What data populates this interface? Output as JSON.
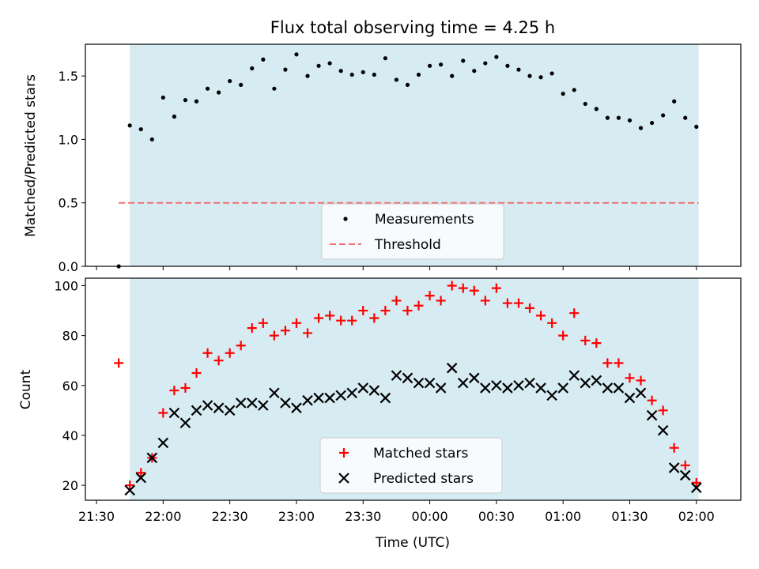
{
  "figure": {
    "title": "Flux total observing time = 4.25 h",
    "xlabel": "Time (UTC)"
  },
  "time_ticks": [
    "21:30",
    "22:00",
    "22:30",
    "23:00",
    "23:30",
    "00:00",
    "00:30",
    "01:00",
    "01:30",
    "02:00"
  ],
  "chart_data": [
    {
      "type": "scatter",
      "ylabel": "Matched/Predicted stars",
      "xlim": [
        -5,
        290
      ],
      "ylim": [
        0,
        1.75
      ],
      "yticks": [
        "0.0",
        "0.5",
        "1.0",
        "1.5"
      ],
      "shaded_span": [
        15,
        271
      ],
      "threshold": {
        "value": 0.5,
        "x_range": [
          10,
          271
        ],
        "color": "#f07070"
      },
      "legend": {
        "placement": "lower center",
        "entries": [
          "Measurements",
          "Threshold"
        ]
      },
      "series": [
        {
          "name": "Measurements",
          "color": "#000000",
          "x": [
            10,
            15,
            20,
            25,
            30,
            35,
            40,
            45,
            50,
            55,
            60,
            65,
            70,
            75,
            80,
            85,
            90,
            95,
            100,
            105,
            110,
            115,
            120,
            125,
            130,
            135,
            140,
            145,
            150,
            155,
            160,
            165,
            170,
            175,
            180,
            185,
            190,
            195,
            200,
            205,
            210,
            215,
            220,
            225,
            230,
            235,
            240,
            245,
            250,
            255,
            260,
            265,
            270
          ],
          "y": [
            0.0,
            1.11,
            1.08,
            1.0,
            1.33,
            1.18,
            1.31,
            1.3,
            1.4,
            1.37,
            1.46,
            1.43,
            1.56,
            1.63,
            1.4,
            1.55,
            1.67,
            1.5,
            1.58,
            1.6,
            1.54,
            1.51,
            1.53,
            1.51,
            1.64,
            1.47,
            1.43,
            1.51,
            1.58,
            1.59,
            1.5,
            1.62,
            1.54,
            1.6,
            1.65,
            1.58,
            1.55,
            1.5,
            1.49,
            1.52,
            1.36,
            1.39,
            1.28,
            1.24,
            1.17,
            1.17,
            1.15,
            1.09,
            1.13,
            1.19,
            1.3,
            1.17,
            1.1
          ]
        }
      ]
    },
    {
      "type": "scatter",
      "ylabel": "Count",
      "xlim": [
        -5,
        290
      ],
      "ylim": [
        14,
        103
      ],
      "yticks": [
        "20",
        "40",
        "60",
        "80",
        "100"
      ],
      "shaded_span": [
        15,
        271
      ],
      "legend": {
        "placement": "lower center",
        "entries": [
          "Matched stars",
          "Predicted stars"
        ]
      },
      "series": [
        {
          "name": "Matched stars",
          "color": "#ff0000",
          "marker": "+",
          "x": [
            10,
            15,
            20,
            25,
            30,
            35,
            40,
            45,
            50,
            55,
            60,
            65,
            70,
            75,
            80,
            85,
            90,
            95,
            100,
            105,
            110,
            115,
            120,
            125,
            130,
            135,
            140,
            145,
            150,
            155,
            160,
            165,
            170,
            175,
            180,
            185,
            190,
            195,
            200,
            205,
            210,
            215,
            220,
            225,
            230,
            235,
            240,
            245,
            250,
            255,
            260,
            265,
            270
          ],
          "y": [
            69,
            20,
            25,
            31,
            49,
            58,
            59,
            65,
            73,
            70,
            73,
            76,
            83,
            85,
            80,
            82,
            85,
            81,
            87,
            88,
            86,
            86,
            90,
            87,
            90,
            94,
            90,
            92,
            96,
            94,
            100,
            99,
            98,
            94,
            99,
            93,
            93,
            91,
            88,
            85,
            80,
            89,
            78,
            77,
            69,
            69,
            63,
            62,
            54,
            50,
            35,
            28,
            21
          ]
        },
        {
          "name": "Predicted stars",
          "color": "#000000",
          "marker": "x",
          "x": [
            15,
            20,
            25,
            30,
            35,
            40,
            45,
            50,
            55,
            60,
            65,
            70,
            75,
            80,
            85,
            90,
            95,
            100,
            105,
            110,
            115,
            120,
            125,
            130,
            135,
            140,
            145,
            150,
            155,
            160,
            165,
            170,
            175,
            180,
            185,
            190,
            195,
            200,
            205,
            210,
            215,
            220,
            225,
            230,
            235,
            240,
            245,
            250,
            255,
            260,
            265,
            270
          ],
          "y": [
            18,
            23,
            31,
            37,
            49,
            45,
            50,
            52,
            51,
            50,
            53,
            53,
            52,
            57,
            53,
            51,
            54,
            55,
            55,
            56,
            57,
            59,
            58,
            55,
            64,
            63,
            61,
            61,
            59,
            67,
            61,
            63,
            59,
            60,
            59,
            60,
            61,
            59,
            56,
            59,
            64,
            61,
            62,
            59,
            59,
            55,
            57,
            48,
            42,
            27,
            24,
            19
          ]
        }
      ]
    }
  ]
}
